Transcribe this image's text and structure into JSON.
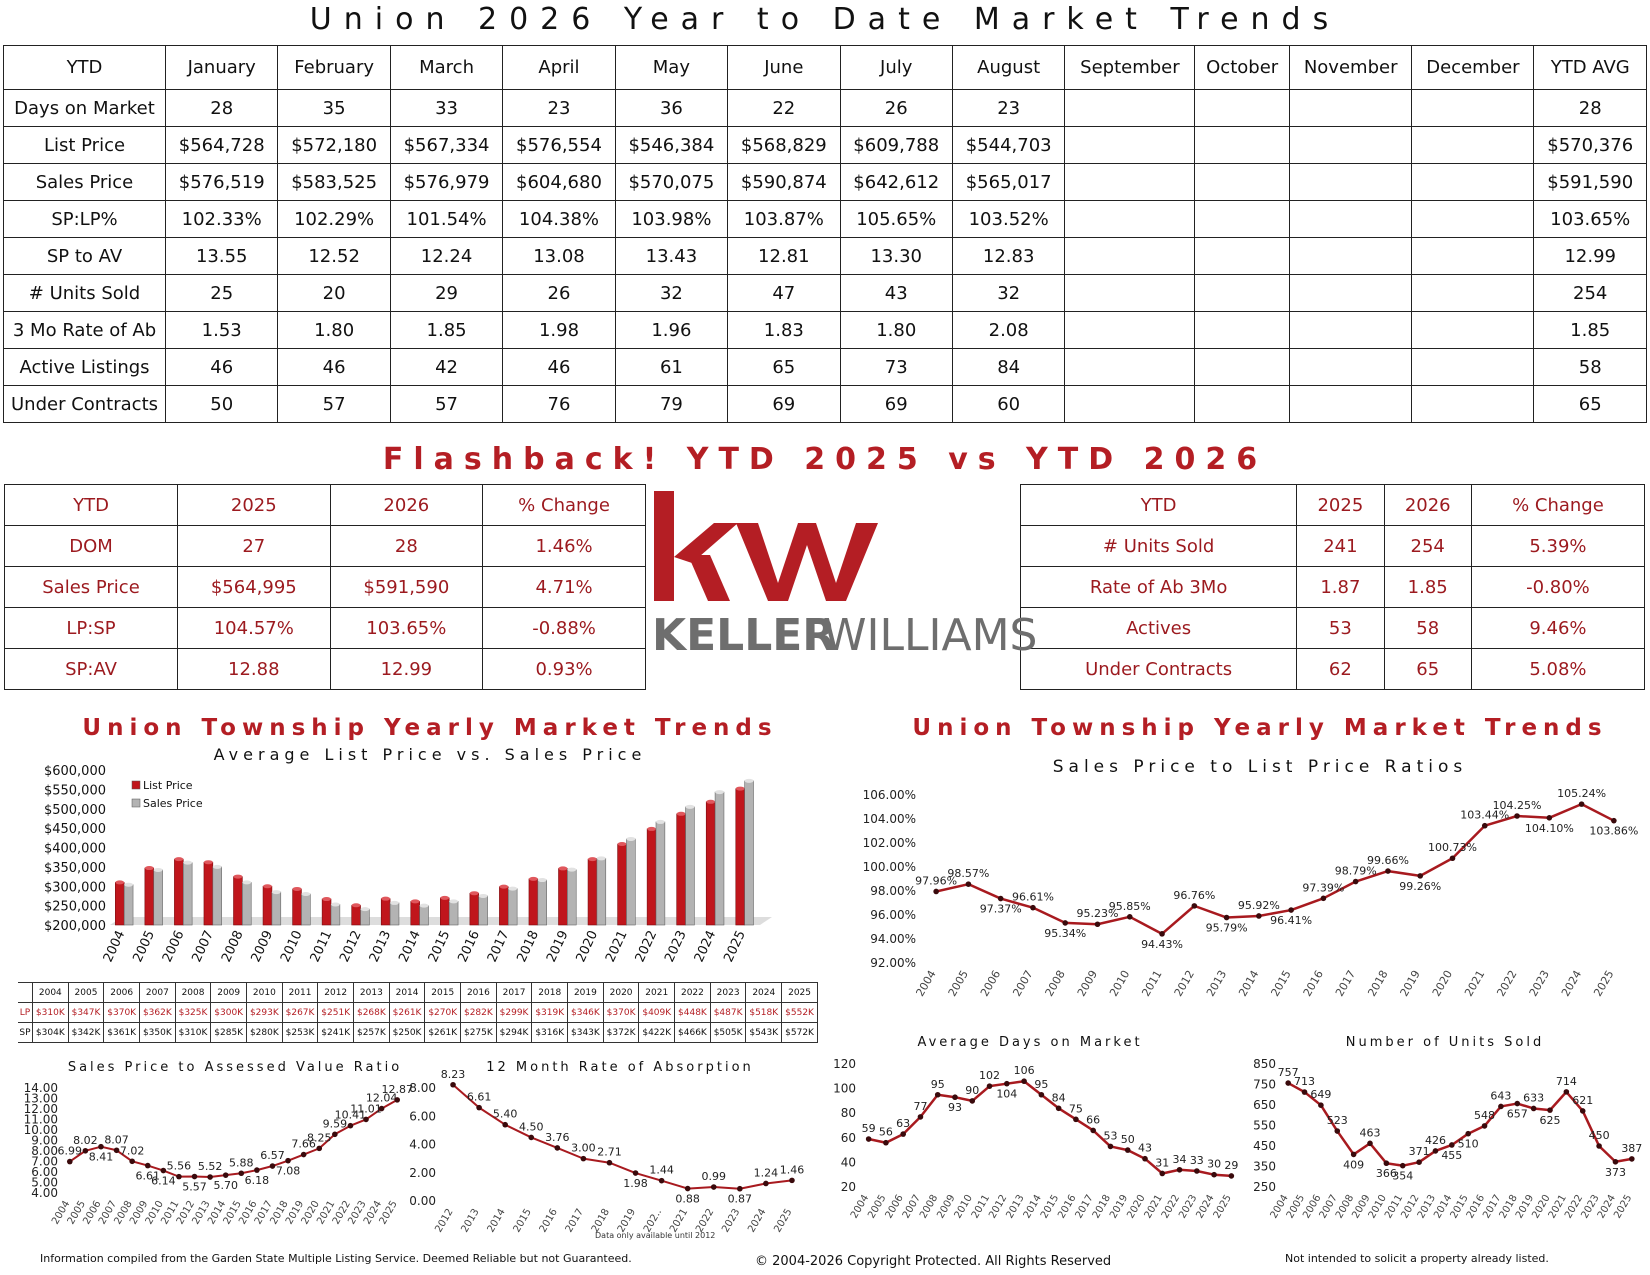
{
  "title": "Union 2026 Year to Date Market Trends",
  "ytd_table": {
    "headers": [
      "YTD",
      "January",
      "February",
      "March",
      "April",
      "May",
      "June",
      "July",
      "August",
      "September",
      "October",
      "November",
      "December",
      "YTD AVG"
    ],
    "rows": [
      [
        "Days on Market",
        "28",
        "35",
        "33",
        "23",
        "36",
        "22",
        "26",
        "23",
        "",
        "",
        "",
        "",
        "28"
      ],
      [
        "List Price",
        "$564,728",
        "$572,180",
        "$567,334",
        "$576,554",
        "$546,384",
        "$568,829",
        "$609,788",
        "$544,703",
        "",
        "",
        "",
        "",
        "$570,376"
      ],
      [
        "Sales Price",
        "$576,519",
        "$583,525",
        "$576,979",
        "$604,680",
        "$570,075",
        "$590,874",
        "$642,612",
        "$565,017",
        "",
        "",
        "",
        "",
        "$591,590"
      ],
      [
        "SP:LP%",
        "102.33%",
        "102.29%",
        "101.54%",
        "104.38%",
        "103.98%",
        "103.87%",
        "105.65%",
        "103.52%",
        "",
        "",
        "",
        "",
        "103.65%"
      ],
      [
        "SP to AV",
        "13.55",
        "12.52",
        "12.24",
        "13.08",
        "13.43",
        "12.81",
        "13.30",
        "12.83",
        "",
        "",
        "",
        "",
        "12.99"
      ],
      [
        "# Units Sold",
        "25",
        "20",
        "29",
        "26",
        "32",
        "47",
        "43",
        "32",
        "",
        "",
        "",
        "",
        "254"
      ],
      [
        "3 Mo Rate of Ab",
        "1.53",
        "1.80",
        "1.85",
        "1.98",
        "1.96",
        "1.83",
        "1.80",
        "2.08",
        "",
        "",
        "",
        "",
        "1.85"
      ],
      [
        "Active Listings",
        "46",
        "46",
        "42",
        "46",
        "61",
        "65",
        "73",
        "84",
        "",
        "",
        "",
        "",
        "58"
      ],
      [
        "Under Contracts",
        "50",
        "57",
        "57",
        "76",
        "79",
        "69",
        "69",
        "60",
        "",
        "",
        "",
        "",
        "65"
      ]
    ]
  },
  "flashback_title": "Flashback!   YTD 2025 vs YTD 2026",
  "compare_left": {
    "headers": [
      "YTD",
      "2025",
      "2026",
      "% Change"
    ],
    "rows": [
      [
        "DOM",
        "27",
        "28",
        "1.46%"
      ],
      [
        "Sales Price",
        "$564,995",
        "$591,590",
        "4.71%"
      ],
      [
        "LP:SP",
        "104.57%",
        "103.65%",
        "-0.88%"
      ],
      [
        "SP:AV",
        "12.88",
        "12.99",
        "0.93%"
      ]
    ]
  },
  "compare_right": {
    "headers": [
      "YTD",
      "2025",
      "2026",
      "% Change"
    ],
    "rows": [
      [
        "# Units Sold",
        "241",
        "254",
        "5.39%"
      ],
      [
        "Rate of Ab 3Mo",
        "1.87",
        "1.85",
        "-0.80%"
      ],
      [
        "Actives",
        "53",
        "58",
        "9.46%"
      ],
      [
        "Under Contracts",
        "62",
        "65",
        "5.08%"
      ]
    ]
  },
  "logo": {
    "mark": "kw",
    "wordmark_bold": "KELLER",
    "wordmark_light": "WILLIAMS",
    "color": "#b41e24"
  },
  "yearly_title": "Union Township Yearly Market Trends",
  "footer": {
    "left": "Information compiled from the Garden State Multiple Listing Service.  Deemed Reliable but not Guaranteed.",
    "center": "© 2004-2026 Copyright Protected.  All Rights Reserved",
    "right": "Not intended to solicit a property already listed."
  },
  "lp_sp_table": {
    "years": [
      "2004",
      "2005",
      "2006",
      "2007",
      "2008",
      "2009",
      "2010",
      "2011",
      "2012",
      "2013",
      "2014",
      "2015",
      "2016",
      "2017",
      "2018",
      "2019",
      "2020",
      "2021",
      "2022",
      "2023",
      "2024",
      "2025"
    ],
    "lp_label": "LP",
    "sp_label": "SP",
    "lp": [
      "$310K",
      "$347K",
      "$370K",
      "$362K",
      "$325K",
      "$300K",
      "$293K",
      "$267K",
      "$251K",
      "$268K",
      "$261K",
      "$270K",
      "$282K",
      "$299K",
      "$319K",
      "$346K",
      "$370K",
      "$409K",
      "$448K",
      "$487K",
      "$518K",
      "$552K"
    ],
    "sp": [
      "$304K",
      "$342K",
      "$361K",
      "$350K",
      "$310K",
      "$285K",
      "$280K",
      "$253K",
      "$241K",
      "$257K",
      "$250K",
      "$261K",
      "$275K",
      "$294K",
      "$316K",
      "$343K",
      "$372K",
      "$422K",
      "$466K",
      "$505K",
      "$543K",
      "$572K"
    ]
  },
  "chart_data": [
    {
      "type": "bar",
      "title": "Union Township Yearly Market Trends",
      "subtitle": "Average List Price vs. Sales Price",
      "categories": [
        "2004",
        "2005",
        "2006",
        "2007",
        "2008",
        "2009",
        "2010",
        "2011",
        "2012",
        "2013",
        "2014",
        "2015",
        "2016",
        "2017",
        "2018",
        "2019",
        "2020",
        "2021",
        "2022",
        "2023",
        "2024",
        "2025"
      ],
      "series": [
        {
          "name": "List Price",
          "color": "#c0161c",
          "values": [
            310,
            347,
            370,
            362,
            325,
            300,
            293,
            267,
            251,
            268,
            261,
            270,
            282,
            299,
            319,
            346,
            370,
            409,
            448,
            487,
            518,
            552
          ]
        },
        {
          "name": "Sales Price",
          "color": "#b3b3b3",
          "values": [
            304,
            342,
            361,
            350,
            310,
            285,
            280,
            253,
            241,
            257,
            250,
            261,
            275,
            294,
            316,
            343,
            372,
            422,
            466,
            505,
            543,
            572
          ]
        }
      ],
      "unit": "thousands USD",
      "yticks": [
        "$200,000",
        "$250,000",
        "$300,000",
        "$350,000",
        "$400,000",
        "$450,000",
        "$500,000",
        "$550,000",
        "$600,000"
      ],
      "ylim": [
        200000,
        600000
      ],
      "legend": "top-left"
    },
    {
      "type": "line",
      "title": "Union Township Yearly Market Trends",
      "subtitle": "Sales Price to List Price Ratios",
      "x": [
        "2004",
        "2005",
        "2006",
        "2007",
        "2008",
        "2009",
        "2010",
        "2011",
        "2012",
        "2013",
        "2014",
        "2015",
        "2016",
        "2017",
        "2018",
        "2019",
        "2020",
        "2021",
        "2022",
        "2023",
        "2024",
        "2025"
      ],
      "values": [
        97.96,
        98.57,
        97.37,
        96.61,
        95.34,
        95.23,
        95.85,
        94.43,
        96.76,
        95.79,
        95.92,
        96.41,
        97.39,
        98.79,
        99.66,
        99.26,
        100.73,
        103.44,
        104.25,
        104.1,
        105.24,
        103.86
      ],
      "labels": [
        "97.96%",
        "98.57%",
        "97.37%",
        "96.61%",
        "95.34%",
        "95.23%",
        "95.85%",
        "94.43%",
        "96.76%",
        "95.79%",
        "95.92%",
        "96.41%",
        "97.39%",
        "98.79%",
        "99.66%",
        "99.26%",
        "100.73%",
        "103.44%",
        "104.25%",
        "104.10%",
        "105.24%",
        "103.86%"
      ],
      "yticks": [
        "92.00%",
        "94.00%",
        "96.00%",
        "98.00%",
        "100.00%",
        "102.00%",
        "104.00%",
        "106.00%"
      ],
      "ylim": [
        92,
        106
      ]
    },
    {
      "type": "line",
      "title": "Sales Price to Assessed Value Ratio",
      "x": [
        "2004",
        "2005",
        "2006",
        "2007",
        "2008",
        "2009",
        "2010",
        "2011",
        "2012",
        "2013",
        "2014",
        "2015",
        "2016",
        "2017",
        "2018",
        "2019",
        "2020",
        "2021",
        "2022",
        "2023",
        "2024",
        "2025"
      ],
      "values": [
        6.99,
        8.02,
        8.41,
        8.07,
        7.02,
        6.61,
        6.14,
        5.56,
        5.57,
        5.52,
        5.7,
        5.88,
        6.18,
        6.57,
        7.08,
        7.66,
        8.25,
        9.59,
        10.41,
        11.01,
        12.04,
        12.87
      ],
      "labels": [
        "6.99",
        "8.02",
        "8.41",
        "8.07",
        "7.02",
        "6.61",
        "6.14",
        "5.56",
        "5.57",
        "5.52",
        "5.70",
        "5.88",
        "6.18",
        "6.57",
        "7.08",
        "7.66",
        "8.25",
        "9.59",
        "10.41",
        "11.01",
        "12.04",
        "12.87"
      ],
      "yticks": [
        "4.00",
        "5.00",
        "6.00",
        "7.00",
        "8.00",
        "9.00",
        "10.00",
        "11.00",
        "12.00",
        "13.00",
        "14.00"
      ],
      "ylim": [
        4,
        14
      ]
    },
    {
      "type": "line",
      "title": "12 Month Rate of Absorption",
      "note": "Data only available until 2012",
      "x": [
        "2012",
        "2013",
        "2014",
        "2015",
        "2016",
        "2017",
        "2018",
        "2019",
        "202..",
        "2021",
        "2022",
        "2023",
        "2024",
        "2025"
      ],
      "values": [
        8.23,
        6.61,
        5.4,
        4.5,
        3.76,
        3.0,
        2.71,
        1.98,
        1.44,
        0.88,
        0.99,
        0.87,
        1.24,
        1.46
      ],
      "labels": [
        "8.23",
        "6.61",
        "5.40",
        "4.50",
        "3.76",
        "3.00",
        "2.71",
        "1.98",
        "1.44",
        "0.88",
        "0.99",
        "0.87",
        "1.24",
        "1.46"
      ],
      "yticks": [
        "0.00",
        "2.00",
        "4.00",
        "6.00",
        "8.00"
      ],
      "ylim": [
        0,
        8
      ]
    },
    {
      "type": "line",
      "title": "Average Days on Market",
      "x": [
        "2004",
        "2005",
        "2006",
        "2007",
        "2008",
        "2009",
        "2010",
        "2011",
        "2012",
        "2013",
        "2014",
        "2015",
        "2016",
        "2017",
        "2018",
        "2019",
        "2020",
        "2021",
        "2022",
        "2023",
        "2024",
        "2025"
      ],
      "values": [
        59,
        56,
        63,
        77,
        95,
        93,
        90,
        102,
        104,
        106,
        95,
        84,
        75,
        66,
        53,
        50,
        43,
        31,
        34,
        33,
        30,
        29
      ],
      "labels": [
        "59",
        "56",
        "63",
        "77",
        "95",
        "93",
        "90",
        "102",
        "104",
        "106",
        "95",
        "84",
        "75",
        "66",
        "53",
        "50",
        "43",
        "31",
        "34",
        "33",
        "30",
        "29"
      ],
      "yticks": [
        "20",
        "40",
        "60",
        "80",
        "100",
        "120"
      ],
      "ylim": [
        20,
        120
      ]
    },
    {
      "type": "line",
      "title": "Number of Units Sold",
      "x": [
        "2004",
        "2005",
        "2006",
        "2007",
        "2008",
        "2009",
        "2010",
        "2011",
        "2012",
        "2013",
        "2014",
        "2015",
        "2016",
        "2017",
        "2018",
        "2019",
        "2020",
        "2021",
        "2022",
        "2023",
        "2024",
        "2025"
      ],
      "values": [
        757,
        713,
        649,
        523,
        409,
        463,
        366,
        354,
        371,
        426,
        455,
        510,
        548,
        643,
        657,
        633,
        625,
        714,
        621,
        450,
        373,
        387
      ],
      "labels": [
        "757",
        "713",
        "649",
        "523",
        "409",
        "463",
        "366",
        "354",
        "371",
        "426",
        "455",
        "510",
        "548",
        "643",
        "657",
        "633",
        "625",
        "714",
        "621",
        "450",
        "373",
        "387"
      ],
      "yticks": [
        "250",
        "350",
        "450",
        "550",
        "650",
        "750",
        "850"
      ],
      "ylim": [
        250,
        850
      ]
    }
  ]
}
